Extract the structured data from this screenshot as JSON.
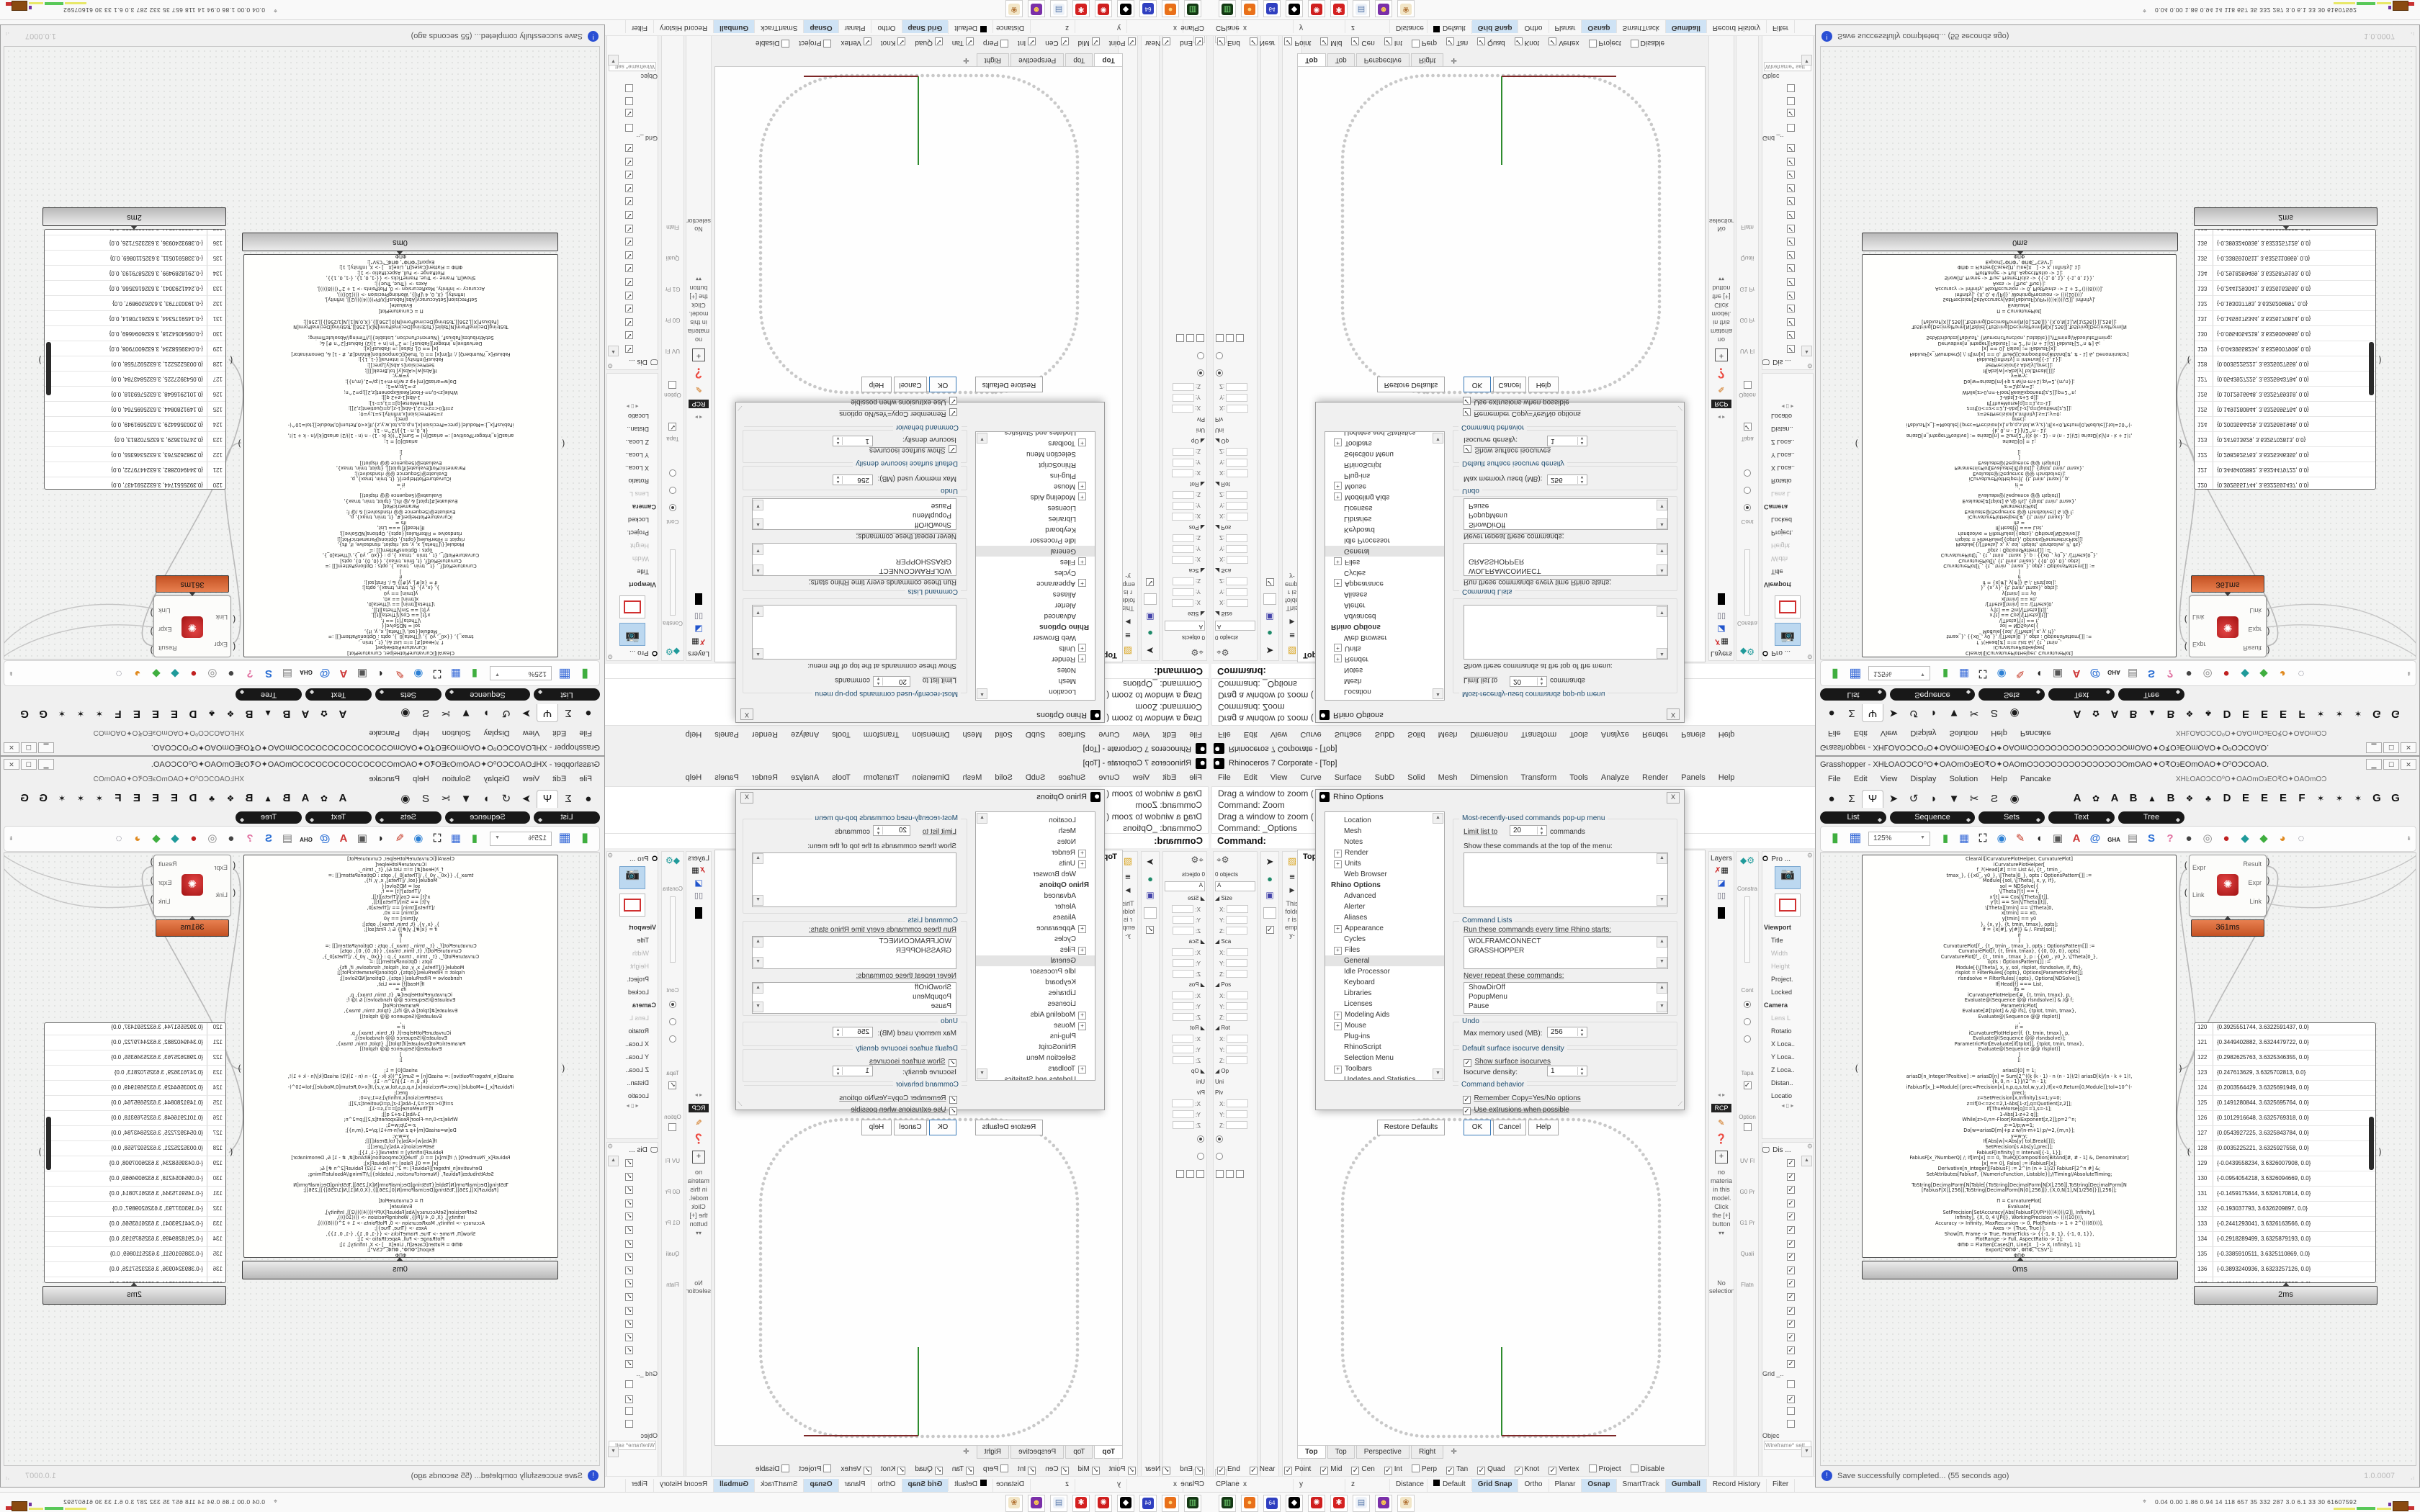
{
  "rhino": {
    "window_title": "Rhinoceros 7 Corporate - [Top]",
    "menu": [
      "File",
      "Edit",
      "View",
      "Curve",
      "Surface",
      "SubD",
      "Solid",
      "Mesh",
      "Dimension",
      "Transform",
      "Tools",
      "Analyze",
      "Render",
      "Panels",
      "Help"
    ],
    "command_history": [
      "Drag a window to zoom (",
      "Command: Zoom",
      "Drag a window to zoom (",
      "Command: _Options"
    ],
    "command_prompt": "Command:",
    "left_panel_rows": [
      {
        "t": "txt",
        "l": "0 objects"
      },
      {
        "t": "input",
        "l": "A"
      },
      {
        "t": "sec",
        "l": "Size"
      },
      {
        "t": "fld",
        "l": "X:"
      },
      {
        "t": "fld",
        "l": "Y:"
      },
      {
        "t": "fld",
        "l": "Z:"
      },
      {
        "t": "sec",
        "l": "Sca"
      },
      {
        "t": "fld",
        "l": "X:"
      },
      {
        "t": "fld",
        "l": "Y:"
      },
      {
        "t": "fld",
        "l": "Z:"
      },
      {
        "t": "sec",
        "l": "Pos"
      },
      {
        "t": "fld",
        "l": "X:"
      },
      {
        "t": "fld",
        "l": "Y:"
      },
      {
        "t": "fld",
        "l": "Z:"
      },
      {
        "t": "sec",
        "l": "Rot"
      },
      {
        "t": "fld",
        "l": "X:"
      },
      {
        "t": "fld",
        "l": "Y:"
      },
      {
        "t": "fld",
        "l": "Z:"
      },
      {
        "t": "sec",
        "l": "Op"
      },
      {
        "t": "txt",
        "l": "Uni"
      },
      {
        "t": "txt",
        "l": "Piv"
      },
      {
        "t": "fld",
        "l": "X:"
      },
      {
        "t": "fld",
        "l": "Y:"
      },
      {
        "t": "fld",
        "l": "Z:"
      },
      {
        "t": "radio",
        "l": ""
      },
      {
        "t": "radio2",
        "l": ""
      },
      {
        "t": "checks",
        "l": ""
      }
    ],
    "folder_note": "This folder is empty-",
    "viewport": {
      "title": "Top",
      "tabs": [
        "Top",
        "Top",
        "Perspective",
        "Right"
      ],
      "curve_color": "#c9c9c9",
      "axis_green": "#2e8b2e",
      "axis_red": "#7c2626"
    },
    "materials_panel": {
      "header": "Layers",
      "rcp": "RCP",
      "note": "no materia in this model. Click the [+] button",
      "selection": "No selection"
    },
    "constraints_labels": [
      "Constra",
      "Cont",
      "Tapa",
      "Option",
      "UV Fl",
      "G0 Pr",
      "G1 Pr",
      "Quali",
      "Flatn"
    ],
    "properties_panel": {
      "header": "Pro ...",
      "rows": [
        {
          "l": "Viewport",
          "s": "h"
        },
        {
          "l": "Title"
        },
        {
          "l": "Width",
          "s": "d"
        },
        {
          "l": "Height",
          "s": "d"
        },
        {
          "l": "Project."
        },
        {
          "l": "Locked"
        },
        {
          "l": "Camera",
          "s": "h"
        },
        {
          "l": "Lens L",
          "s": "d"
        },
        {
          "l": "Rotatio"
        },
        {
          "l": "X Loca.."
        },
        {
          "l": "Y Loca.."
        },
        {
          "l": "Z Loca.."
        },
        {
          "l": "Distan.."
        },
        {
          "l": "Locatio"
        }
      ]
    },
    "display_panel": {
      "header": "Dis ...",
      "check_count": 16,
      "grid_label": "Grid _..",
      "grid_checks": [
        false,
        true,
        false,
        false
      ],
      "object_label": "Objec",
      "wireframe_label": "Wireframe* sett"
    },
    "osnap": [
      {
        "l": "End",
        "c": 1
      },
      {
        "l": "Near",
        "c": 1
      },
      {
        "l": "Point",
        "c": 1
      },
      {
        "l": "Mid",
        "c": 1
      },
      {
        "l": "Cen",
        "c": 1
      },
      {
        "l": "Int",
        "c": 1
      },
      {
        "l": "Perp",
        "c": 0
      },
      {
        "l": "Tan",
        "c": 1
      },
      {
        "l": "Quad",
        "c": 1
      },
      {
        "l": "Knot",
        "c": 1
      },
      {
        "l": "Vertex",
        "c": 1
      },
      {
        "l": "Project",
        "c": 0
      },
      {
        "l": "Disable",
        "c": 0
      }
    ],
    "status": [
      {
        "l": "CPlane"
      },
      {
        "l": "x"
      },
      {
        "l": "y"
      },
      {
        "l": "z"
      },
      {
        "l": "Distance"
      },
      {
        "l": "Default",
        "sw": 1
      },
      {
        "l": "Grid Snap",
        "a": 1
      },
      {
        "l": "Ortho"
      },
      {
        "l": "Planar"
      },
      {
        "l": "Osnap",
        "a": 1
      },
      {
        "l": "SmartTrack"
      },
      {
        "l": "Gumball",
        "a": 1
      },
      {
        "l": "Record History"
      },
      {
        "l": "Filter"
      }
    ],
    "options_dialog": {
      "title": "Rhino Options",
      "tree": [
        {
          "l": "Location"
        },
        {
          "l": "Mesh"
        },
        {
          "l": "Notes"
        },
        {
          "l": "Render",
          "e": 1
        },
        {
          "l": "Units",
          "e": 1
        },
        {
          "l": "Web Browser"
        },
        {
          "l": "Rhino Options",
          "b": 1
        },
        {
          "l": "Advanced"
        },
        {
          "l": "Alerter"
        },
        {
          "l": "Aliases"
        },
        {
          "l": "Appearance",
          "e": 1
        },
        {
          "l": "Cycles"
        },
        {
          "l": "Files",
          "e": 1
        },
        {
          "l": "General",
          "sel": 1
        },
        {
          "l": "Idle Processor"
        },
        {
          "l": "Keyboard"
        },
        {
          "l": "Libraries"
        },
        {
          "l": "Licenses"
        },
        {
          "l": "Modeling Aids",
          "e": 1
        },
        {
          "l": "Mouse",
          "e": 1
        },
        {
          "l": "Plug-ins"
        },
        {
          "l": "RhinoScript"
        },
        {
          "l": "Selection Menu"
        },
        {
          "l": "Toolbars",
          "e": 1
        },
        {
          "l": "Updates and Statistics"
        },
        {
          "l": "View",
          "e": 1
        }
      ],
      "mru_group": "Most-recently-used commands pop-up menu",
      "limit_label": "Limit list to",
      "limit_value": "20",
      "limit_suffix": "commands",
      "show_top_label": "Show these commands at the top of the menu:",
      "cmd_lists_group": "Command Lists",
      "run_label": "Run these commands every time Rhino starts:",
      "run_items": [
        "WOLFRAMCONNECT",
        "GRASSHOPPER"
      ],
      "never_label": "Never repeat these commands:",
      "never_items": [
        "ShowDirOff",
        "PopupMenu",
        "Pause"
      ],
      "undo_group": "Undo",
      "undo_label": "Max memory used (MB):",
      "undo_value": "256",
      "iso_group": "Default surface isocurve density",
      "iso_check": "Show surface isocurves",
      "iso_label": "Isocurve density:",
      "iso_value": "1",
      "behavior_group": "Command behavior",
      "behavior_checks": [
        "Remember Copy=Yes/No options",
        "Use extrusions when possible"
      ],
      "buttons": [
        "Restore Defaults",
        "OK",
        "Cancel",
        "Help"
      ]
    }
  },
  "grasshopper": {
    "title": "Grasshopper - XHĿOAOƆCO⁰O✦OAOmO϶EO₹O✦OAOmOƆOƆOƆOƆOƆOƆOƆOƆOmOAO✦O₹O϶EOmOAO✦O⁰OƆCOAO.",
    "doc_label": "XHĿOAOƆCO⁰O✦OAOmO϶EO₹O✦OAOmOƆ",
    "menu": [
      "File",
      "Edit",
      "View",
      "Display",
      "Solution",
      "Help",
      "Pancake"
    ],
    "palette_icons": [
      "●",
      "Σ",
      "Ψ",
      "➤",
      "↺",
      "◗",
      "▼",
      "✂",
      "Ƨ",
      "◉"
    ],
    "active_palette_index": 2,
    "palette_letters": [
      "A",
      "✿",
      "A",
      "B",
      "▲",
      "B",
      "❖",
      "♣",
      "D",
      "E",
      "E",
      "E",
      "F",
      "✶",
      "✶",
      "✶",
      "G",
      "G"
    ],
    "categories": [
      "List",
      "Sequence",
      "Sets",
      "Text",
      "Tree"
    ],
    "zoom_value": "125%",
    "toolbar_icons": [
      {
        "n": "new-document-icon",
        "g": "▮",
        "c": "#3fae3f"
      },
      {
        "n": "save-icon",
        "g": "▦",
        "c": "#3a6cd8"
      },
      {
        "n": "zoom-extents-icon",
        "g": "⛶",
        "c": "#333"
      },
      {
        "n": "preview-eye-icon",
        "g": "◉",
        "c": "#2b7fd4"
      },
      {
        "n": "sketch-pen-icon",
        "g": "✎",
        "c": "#c43522"
      },
      {
        "n": "preview-mesh-icon",
        "g": "◖",
        "c": "#222"
      },
      {
        "n": "speaker-icon",
        "g": "▣",
        "c": "#555"
      },
      {
        "n": "axes-icon",
        "g": "A",
        "c": "#cc3333"
      },
      {
        "n": "mail-icon",
        "g": "@",
        "c": "#2b6fd4"
      },
      {
        "n": "gha-icon",
        "g": "GHA",
        "c": "#222"
      },
      {
        "n": "notes-icon",
        "g": "▤",
        "c": "#777"
      },
      {
        "n": "finder-icon",
        "g": "S",
        "c": "#2b6fd4"
      },
      {
        "n": "bake-icon",
        "g": "?",
        "c": "#e070a0"
      },
      {
        "n": "sphere-icon",
        "g": "●",
        "c": "#444"
      },
      {
        "n": "ring-icon",
        "g": "◎",
        "c": "#888"
      },
      {
        "n": "torus-icon",
        "g": "●",
        "c": "#c02020"
      },
      {
        "n": "pin-teal-icon",
        "g": "◆",
        "c": "#1f9a9a"
      },
      {
        "n": "pin-green-icon",
        "g": "◆",
        "c": "#3fae3f"
      },
      {
        "n": "ball-orange-icon",
        "g": "◕",
        "c": "#e08a20"
      },
      {
        "n": "selection-icon",
        "g": "◌",
        "c": "#667"
      }
    ],
    "component": {
      "inputs": [
        "Expr",
        "Link"
      ],
      "outputs": [
        "Result",
        "Expr",
        "Link"
      ],
      "time": "361ms"
    },
    "code_panel": {
      "time": "0ms",
      "lines": [
        "ClearAll[iCurvaturePlotHelper, CurvaturePlot]",
        "iCurvaturePlotHelper[",
        "f_?(Head[#] =!= List &), {t_, tmin_,",
        "tmax_}, {{x0_, y0_}, \\[Theta]0_}, opts : OptionsPattern[]] :=",
        "Module[{sol, \\[Theta], x, y, if},",
        "sol = NDSolve[{",
        "\\[Theta]'[t] == f,",
        "x'[t] == Cos[\\[Theta][t]],",
        "y'[t] == Sin[\\[Theta][t]],",
        "\\[Theta][tmin] == \\[Theta]0,",
        "x[tmin] == x0,",
        "y[tmin] == y0",
        "}, {x, y}, {t, tmin, tmax}, opts];",
        "if = {x[#], y[#]} & /. First[sol];",
        "if",
        "]",
        "CurvaturePlot[f_, {t_, tmin_, tmax_}, opts : OptionsPattern[]] :=",
        "CurvaturePlot[f, {t, tmin, tmax}, {{0, 0}, 0}, opts]",
        "CurvaturePlot[f_, {t_, tmin_, tmax_}, p : {{x0_, y0_}, \\[Theta]0_},",
        "opts : OptionsPattern[]] :=",
        "Module[{\\[Theta], x, y, sol, rlsplot, rlsndsolve, if, ifs},",
        "rlsplot = FilterRules[{opts}, Options[ParametricPlot]];",
        "rlsndsolve = FilterRules[{opts}, Options[NDSolve]];",
        "If[Head[f] === List,",
        "ifs =",
        "iCurvaturePlotHelper[#, {t, tmin, tmax}, p,",
        "Evaluate@(Sequence @@ rlsndsolve)] & /@ f;",
        "ParametricPlot[",
        "Evaluate[#[tplot] & /@ ifs], {tplot, tmin, tmax},",
        "Evaluate@(Sequence @@ rlsplot)]",
        ",",
        "if =",
        "iCurvaturePlotHelper[f, {t, tmin, tmax}, p,",
        "Evaluate@(Sequence @@ rlsndsolve)];",
        "ParametricPlot[Evaluate[if[tplot]], {tplot, tmin, tmax},",
        "Evaluate@(Sequence @@ rlsplot)]",
        "]",
        "];",
        "",
        "ariasD[0] = 1;",
        "ariasD[n_Integer?Positive] := ariasD[n] = Sum[2^((k (k - 1) - n (n - 1))/2) ariasD[k]/(n - k + 1)!,",
        "{k, 0, n - 1}]/(2^n - 1);",
        "iFabiusF[x_]:=Module[{prec=Precision[x],n,p,q,s,tol,w,y,z},If[x<0,Return[0,Module]];tol=10^(-",
        "prec);",
        "z=SetPrecision[x,Infinity];s=1;y=0;",
        "z=If[0<=z<=2,1-Abs[1-z],q=Quotient[z,2]];",
        "If[ThueMorse[q]==1,s=-1];",
        "1-Abs[1-z+2 q]];",
        "While[z>0,n=-Floor[RealExponent[z,2]];p=2^n;",
        "z-=1/p;w=1;",
        "Do[w=ariasD[m]+p z w/(n-m+1);p/=2,{m,n}];",
        "y=w-y;",
        "If[Abs[w]<Abs[y] tol,Break[]]];",
        "SetPrecision[s Abs[y],prec]];",
        "FabiusF[Infinity] = Interval[{-1, 1}];",
        "FabiusF[x_?NumberQ] /; If[Im[x] == 0, TrueQ[Composition[BitAnd[#, # - 1] &, Denominator]",
        "[x] == 0], False] := iFabiusF[x];",
        "Derivative[n_Integer][FabiusF] := 2^(n (n + 1)/2) FabiusF[2^n #] &;",
        "SetAttributes[FabiusF, {NumericFunction, Listable}];//Timing//AbsoluteTiming;",
        "",
        "ToString[DecimalForm[N[Table[{ToString[DecimalForm[N[X],256]],ToString[DecimalForm[N",
        "[FabiusF[X]],256]],ToString[DecimalForm[N[0],256]]},{X,0,N[1],N[1/256]}]],256]];",
        "",
        "Π = CurvaturePlot[",
        "Evaluate[",
        "SetPrecision[SetAccuracy[Abs[FabiusF[X/Pi*((((4))))/2]], Infinity],",
        "Infinity], {X, 0, 4 \\[Pi]}, WorkingPrecision -> ((((10)))),",
        "Accuracy -> Infinity, MaxRecursion -> 0, PlotPoints -> 1 + 2^((((8))))],",
        "Axes -> {True, True}];",
        "Show[Π, Frame -> True, FrameTicks -> {{-1, 0, 1}, {-1, 0, 1}},",
        "PlotRange -> Full, AspectRatio -> 1];",
        "ΦΠΦ = Flatten[Cases[Π, Line[X__] -> X, Infinity], 1];",
        "Export[\"ΦΠΦ\", ΦΠΦ, \"CSV\"];",
        "ΦΠΦ"
      ]
    },
    "data_panel": {
      "time": "2ms",
      "rows": [
        [
          120,
          "{0.3925551744, 3.6322591437, 0.0}"
        ],
        [
          121,
          "{0.3449402882, 3.6324479722, 0.0}"
        ],
        [
          122,
          "{0.2982625763, 3.6325346355, 0.0}"
        ],
        [
          123,
          "{0.247613629, 3.6325702813, 0.0}"
        ],
        [
          124,
          "{0.2003564429, 3.6325691949, 0.0}"
        ],
        [
          125,
          "{0.1491280844, 3.6325695764, 0.0}"
        ],
        [
          126,
          "{0.1012916648, 3.6325769318, 0.0}"
        ],
        [
          127,
          "{0.0543927225, 3.6325843784, 0.0}"
        ],
        [
          128,
          "{0.0035225221, 3.6325927558, 0.0}"
        ],
        [
          129,
          "{-0.0439558234, 3.6326007908, 0.0}"
        ],
        [
          130,
          "{-0.0954054218, 3.6326094669, 0.0}"
        ],
        [
          131,
          "{-0.1459175344, 3.6326170814, 0.0}"
        ],
        [
          132,
          "{-0.193037793, 3.6326209897, 0.0}"
        ],
        [
          133,
          "{-0.2441293041, 3.6326163566, 0.0}"
        ],
        [
          134,
          "{-0.2918289499, 3.6325879193, 0.0}"
        ],
        [
          135,
          "{-0.3385910511, 3.6325110869, 0.0}"
        ],
        [
          136,
          "{-0.3893240936, 3.6323257126, 0.0}"
        ],
        [
          137,
          "{-0.4366640544, 3.6319882257, 0.0}"
        ]
      ]
    },
    "status": {
      "message": "Save successfully completed... (55 seconds ago)",
      "version": "1.0.0007"
    }
  },
  "taskbar": {
    "tray_text": "0.04 0.00 1.86 0.94 14 118 657 35 332 287 3.0 6.1 33 30 61607592",
    "icons": [
      {
        "n": "system-monitor-icon",
        "c": "#143814",
        "g": "▥",
        "fg": "#7ae07a"
      },
      {
        "n": "firefox-icon",
        "c": "#e9701a",
        "g": "●",
        "fg": "#ffd27a"
      },
      {
        "n": "disk64-icon",
        "c": "#2f3fc0",
        "g": "64",
        "fg": "#ffffff"
      },
      {
        "n": "rhinoceros-icon",
        "c": "#000000",
        "g": "◆",
        "fg": "#ffffff"
      },
      {
        "n": "wolfram-red-icon",
        "c": "#cf1f1f",
        "g": "✺",
        "fg": "#ffffff"
      },
      {
        "n": "gear-red-icon",
        "c": "#d42020",
        "g": "✱",
        "fg": "#ffffff"
      },
      {
        "n": "notepad-icon",
        "c": "#eef2f8",
        "g": "▤",
        "fg": "#5577aa"
      },
      {
        "n": "purple-app-icon",
        "c": "#7a2fa8",
        "g": "☻",
        "fg": "#ffd24a"
      },
      {
        "n": "palette-icon",
        "c": "#f2e6c8",
        "g": "❀",
        "fg": "#b07030"
      }
    ]
  }
}
